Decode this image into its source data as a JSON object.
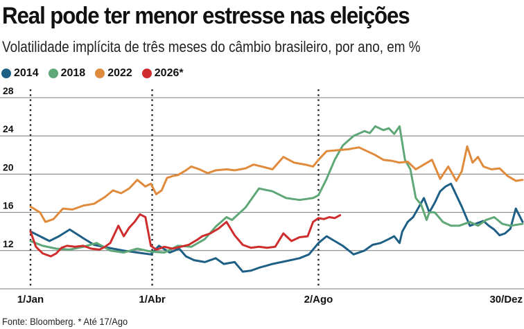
{
  "header": {
    "title": "Real pode ter menor estresse nas eleições",
    "subtitle": "Volatilidade implícita de três meses do câmbio brasileiro, por ano, em %"
  },
  "footer": {
    "source": "Fonte: Bloomberg. * Até 17/Ago"
  },
  "chart_data": {
    "type": "line",
    "ylim": [
      8,
      28
    ],
    "yticks": [
      12,
      16,
      20,
      24,
      28
    ],
    "xlim": [
      1,
      365
    ],
    "xticks": [
      {
        "day": 1,
        "label": "1/Jan"
      },
      {
        "day": 91,
        "label": "1/Abr"
      },
      {
        "day": 214,
        "label": "2/Ago"
      },
      {
        "day": 364,
        "label": "30/Dez"
      }
    ],
    "vlines": [
      1,
      91,
      214
    ],
    "grid": "horizontal",
    "legend_position": "top-left",
    "series": [
      {
        "name": "2014",
        "color": "#1e5f85",
        "x": [
          1,
          8,
          15,
          22,
          30,
          40,
          48,
          55,
          62,
          70,
          80,
          90,
          96,
          104,
          111,
          116,
          122,
          130,
          138,
          144,
          152,
          158,
          164,
          170,
          180,
          190,
          200,
          207,
          214,
          220,
          226,
          232,
          240,
          248,
          254,
          260,
          266,
          270,
          274,
          276,
          280,
          284,
          288,
          292,
          296,
          300,
          304,
          308,
          312,
          316,
          320,
          326,
          330,
          336,
          340,
          344,
          348,
          352,
          356,
          360,
          365
        ],
        "y": [
          14,
          13.5,
          13,
          13.5,
          14.2,
          13.3,
          12.6,
          12.4,
          12.2,
          12.0,
          11.8,
          11.6,
          12.5,
          11.8,
          12.2,
          11.4,
          11.0,
          10.8,
          11.2,
          10.6,
          10.8,
          9.8,
          9.9,
          10.2,
          10.6,
          10.9,
          11.2,
          11.6,
          12.8,
          13.5,
          13.0,
          12.5,
          11.6,
          12.0,
          12.6,
          12.8,
          13.2,
          13.5,
          12.8,
          14.0,
          15.0,
          15.5,
          16.5,
          17.5,
          16.0,
          17.0,
          18.2,
          18.7,
          19.0,
          17.8,
          16.6,
          14.6,
          14.8,
          15.1,
          14.6,
          14.2,
          13.6,
          13.8,
          14.3,
          16.4,
          15.0
        ]
      },
      {
        "name": "2018",
        "color": "#5fa777",
        "x": [
          1,
          10,
          20,
          30,
          40,
          50,
          60,
          70,
          80,
          90,
          100,
          110,
          120,
          130,
          138,
          146,
          150,
          160,
          170,
          180,
          190,
          200,
          210,
          214,
          220,
          226,
          232,
          240,
          248,
          252,
          256,
          262,
          266,
          270,
          274,
          278,
          282,
          286,
          290,
          294,
          296,
          300,
          306,
          312,
          318,
          326,
          332,
          338,
          344,
          350,
          356,
          365
        ],
        "y": [
          13,
          12.5,
          12.2,
          12.1,
          12.4,
          12.8,
          12,
          11.8,
          12.2,
          11.9,
          11.8,
          12.5,
          12.4,
          13.2,
          14.5,
          15.5,
          15.2,
          16.5,
          18.5,
          18.2,
          17.5,
          17.3,
          17.5,
          17.8,
          19.5,
          21.5,
          23.0,
          24.0,
          24.5,
          24.3,
          25.0,
          24.6,
          24.8,
          24.2,
          25.0,
          21.5,
          20.5,
          17.5,
          16.8,
          15.2,
          16.0,
          16.0,
          15.0,
          14.6,
          14.6,
          15.0,
          14.6,
          15.2,
          15.5,
          14.8,
          14.6,
          14.8
        ]
      },
      {
        "name": "2022",
        "color": "#e08a3c",
        "x": [
          1,
          8,
          12,
          18,
          25,
          32,
          40,
          48,
          56,
          62,
          68,
          74,
          80,
          86,
          90,
          94,
          98,
          102,
          106,
          110,
          116,
          120,
          126,
          132,
          138,
          146,
          152,
          160,
          166,
          172,
          180,
          188,
          196,
          204,
          210,
          214,
          220,
          228,
          236,
          244,
          250,
          256,
          262,
          268,
          274,
          280,
          286,
          292,
          298,
          304,
          310,
          316,
          320,
          324,
          328,
          332,
          336,
          342,
          348,
          354,
          360,
          365
        ],
        "y": [
          16.6,
          16.0,
          15.0,
          15.3,
          16.4,
          16.3,
          16.7,
          16.9,
          17.6,
          18.3,
          18.0,
          18.5,
          19.4,
          18.7,
          19.0,
          17.9,
          18.3,
          19.6,
          19.8,
          19.9,
          20.4,
          20.8,
          20.5,
          20.1,
          20.4,
          20.5,
          20.4,
          20.6,
          21.0,
          20.8,
          20.5,
          21.8,
          21.2,
          21.0,
          20.8,
          21.5,
          22.4,
          22.5,
          22.6,
          22.8,
          22.4,
          22.0,
          21.5,
          21.4,
          21.2,
          21.3,
          20.5,
          21.0,
          21.5,
          19.5,
          20.8,
          19.3,
          20.3,
          22.9,
          21.2,
          21.8,
          20.8,
          20.5,
          20.6,
          19.8,
          19.3,
          19.4
        ]
      },
      {
        "name": "2026*",
        "color": "#cf2d2d",
        "x": [
          1,
          5,
          10,
          16,
          20,
          24,
          28,
          34,
          40,
          46,
          52,
          56,
          60,
          66,
          70,
          74,
          78,
          82,
          86,
          90,
          94,
          100,
          106,
          112,
          118,
          124,
          128,
          134,
          140,
          146,
          152,
          158,
          164,
          170,
          176,
          182,
          188,
          194,
          200,
          206,
          210,
          214,
          218,
          222,
          226,
          230
        ],
        "y": [
          14.0,
          12.4,
          11.7,
          11.4,
          11.7,
          12.3,
          12.5,
          12.4,
          12.5,
          12.2,
          12.1,
          12.4,
          12.8,
          14.6,
          13.5,
          14.4,
          15.0,
          15.8,
          15.5,
          12.5,
          12.1,
          12.4,
          12.2,
          12.4,
          12.6,
          13.1,
          13.5,
          13.8,
          14.3,
          15.0,
          13.6,
          12.6,
          12.3,
          12.4,
          12.3,
          12.4,
          13.8,
          13.0,
          13.4,
          13.5,
          15.0,
          15.4,
          15.3,
          15.5,
          15.4,
          15.7
        ]
      }
    ]
  }
}
